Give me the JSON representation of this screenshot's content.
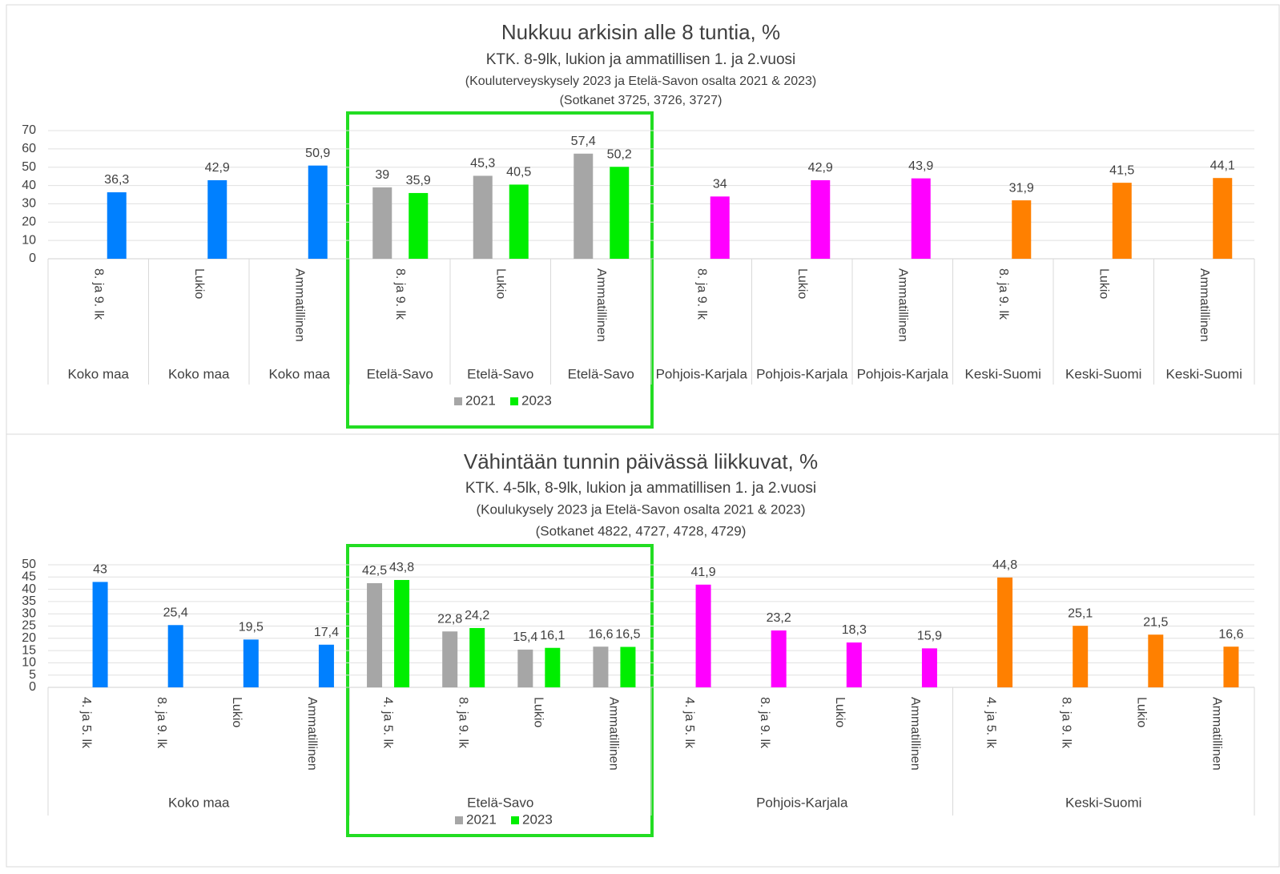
{
  "chart_data": [
    {
      "type": "bar",
      "title": "Nukkuu arkisin alle 8 tuntia, %",
      "subtitle": [
        "KTK. 8-9lk, lukion ja ammatillisen 1. ja 2.vuosi",
        "(Kouluterveyskysely 2023 ja Etelä-Savon osalta 2021 & 2023)",
        "(Sotkanet 3725, 3726, 3727)"
      ],
      "groups": [
        {
          "name": "Koko maa",
          "categories": [
            "8. ja 9. lk"
          ]
        },
        {
          "name": "Koko maa",
          "categories": [
            "Lukio"
          ]
        },
        {
          "name": "Koko maa",
          "categories": [
            "Ammatillinen"
          ]
        },
        {
          "name": "Etelä-Savo",
          "categories": [
            "8. ja 9. lk"
          ]
        },
        {
          "name": "Etelä-Savo",
          "categories": [
            "Lukio"
          ]
        },
        {
          "name": "Etelä-Savo",
          "categories": [
            "Ammatillinen"
          ]
        },
        {
          "name": "Pohjois-Karjala",
          "categories": [
            "8. ja 9. lk"
          ]
        },
        {
          "name": "Pohjois-Karjala",
          "categories": [
            "Lukio"
          ]
        },
        {
          "name": "Pohjois-Karjala",
          "categories": [
            "Ammatillinen"
          ]
        },
        {
          "name": "Keski-Suomi",
          "categories": [
            "8. ja 9. lk"
          ]
        },
        {
          "name": "Keski-Suomi",
          "categories": [
            "Lukio"
          ]
        },
        {
          "name": "Keski-Suomi",
          "categories": [
            "Ammatillinen"
          ]
        }
      ],
      "series": [
        {
          "name": "2021",
          "color": "#a6a6a6",
          "values": [
            null,
            null,
            null,
            39,
            45.3,
            57.4,
            null,
            null,
            null,
            null,
            null,
            null
          ],
          "value_labels": [
            null,
            null,
            null,
            "39",
            "45,3",
            "57,4",
            null,
            null,
            null,
            null,
            null,
            null
          ]
        },
        {
          "name": "2023",
          "color": "#00ee00",
          "point_colors": [
            "#0080ff",
            "#0080ff",
            "#0080ff",
            "#00ee00",
            "#00ee00",
            "#00ee00",
            "#ff00ff",
            "#ff00ff",
            "#ff00ff",
            "#ff8000",
            "#ff8000",
            "#ff8000"
          ],
          "values": [
            36.3,
            42.9,
            50.9,
            35.9,
            40.5,
            50.2,
            34,
            42.9,
            43.9,
            31.9,
            41.5,
            44.1
          ],
          "value_labels": [
            "36,3",
            "42,9",
            "50,9",
            "35,9",
            "40,5",
            "50,2",
            "34",
            "42,9",
            "43,9",
            "31,9",
            "41,5",
            "44,1"
          ]
        }
      ],
      "ylim": [
        0,
        70
      ],
      "yticks": [
        0,
        10,
        20,
        30,
        40,
        50,
        60,
        70
      ],
      "grid": true
    },
    {
      "type": "bar",
      "title": "Vähintään tunnin päivässä liikkuvat, %",
      "subtitle": [
        "KTK. 4-5lk, 8-9lk, lukion ja ammatillisen 1. ja 2.vuosi",
        "(Koulukysely 2023 ja Etelä-Savon osalta 2021 & 2023)",
        "(Sotkanet 4822, 4727, 4728, 4729)"
      ],
      "groups": [
        {
          "name": "Koko maa",
          "categories": [
            "4. ja 5. lk",
            "8. ja 9. lk",
            "Lukio",
            "Ammatillinen"
          ]
        },
        {
          "name": "Etelä-Savo",
          "categories": [
            "4. ja 5. lk",
            "8. ja 9. lk",
            "Lukio",
            "Ammatillinen"
          ]
        },
        {
          "name": "Pohjois-Karjala",
          "categories": [
            "4. ja 5. lk",
            "8. ja 9. lk",
            "Lukio",
            "Ammatillinen"
          ]
        },
        {
          "name": "Keski-Suomi",
          "categories": [
            "4. ja 5. lk",
            "8. ja 9. lk",
            "Lukio",
            "Ammatillinen"
          ]
        }
      ],
      "series": [
        {
          "name": "2021",
          "color": "#a6a6a6",
          "values": [
            null,
            null,
            null,
            null,
            42.5,
            22.8,
            15.4,
            16.6,
            null,
            null,
            null,
            null,
            null,
            null,
            null,
            null
          ],
          "value_labels": [
            null,
            null,
            null,
            null,
            "42,5",
            "22,8",
            "15,4",
            "16,6",
            null,
            null,
            null,
            null,
            null,
            null,
            null,
            null
          ]
        },
        {
          "name": "2023",
          "color": "#00ee00",
          "point_colors": [
            "#0080ff",
            "#0080ff",
            "#0080ff",
            "#0080ff",
            "#00ee00",
            "#00ee00",
            "#00ee00",
            "#00ee00",
            "#ff00ff",
            "#ff00ff",
            "#ff00ff",
            "#ff00ff",
            "#ff8000",
            "#ff8000",
            "#ff8000",
            "#ff8000"
          ],
          "values": [
            43,
            25.4,
            19.5,
            17.4,
            43.8,
            24.2,
            16.1,
            16.5,
            41.9,
            23.2,
            18.3,
            15.9,
            44.8,
            25.1,
            21.5,
            16.6
          ],
          "value_labels": [
            "43",
            "25,4",
            "19,5",
            "17,4",
            "43,8",
            "24,2",
            "16,1",
            "16,5",
            "41,9",
            "23,2",
            "18,3",
            "15,9",
            "44,8",
            "25,1",
            "21,5",
            "16,6"
          ]
        }
      ],
      "ylim": [
        0,
        50
      ],
      "yticks": [
        0,
        5,
        10,
        15,
        20,
        25,
        30,
        35,
        40,
        45,
        50
      ],
      "grid": true
    }
  ]
}
